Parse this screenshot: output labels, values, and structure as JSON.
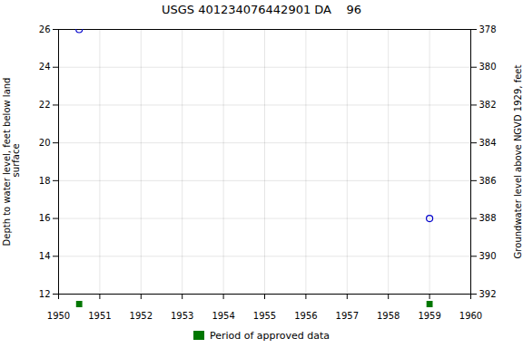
{
  "chart_data": {
    "type": "scatter",
    "title": "USGS 401234076442901 DA    96",
    "series": [
      {
        "x": [
          1950.5,
          1959.0
        ],
        "values": [
          26,
          16
        ],
        "color": "#0000cc",
        "marker": "circle"
      },
      {
        "name": "Period of approved data",
        "x": [
          1950.5,
          1959.0
        ],
        "color": "#007700",
        "marker": "square"
      }
    ],
    "xlim": [
      1950,
      1960
    ],
    "xticks": [
      1950,
      1951,
      1952,
      1953,
      1954,
      1955,
      1956,
      1957,
      1958,
      1959,
      1960
    ],
    "ylim": [
      12,
      26
    ],
    "yticks": [
      12,
      14,
      16,
      18,
      20,
      22,
      24,
      26
    ],
    "y2lim": [
      392,
      378
    ],
    "y2ticks": [
      392,
      390,
      388,
      386,
      384,
      382,
      380,
      378
    ],
    "ylabel": "Depth to water level, feet below land\n surface",
    "y2label": "Groundwater level above NGVD 1929, feet",
    "grid": true,
    "legend": "bottom"
  }
}
